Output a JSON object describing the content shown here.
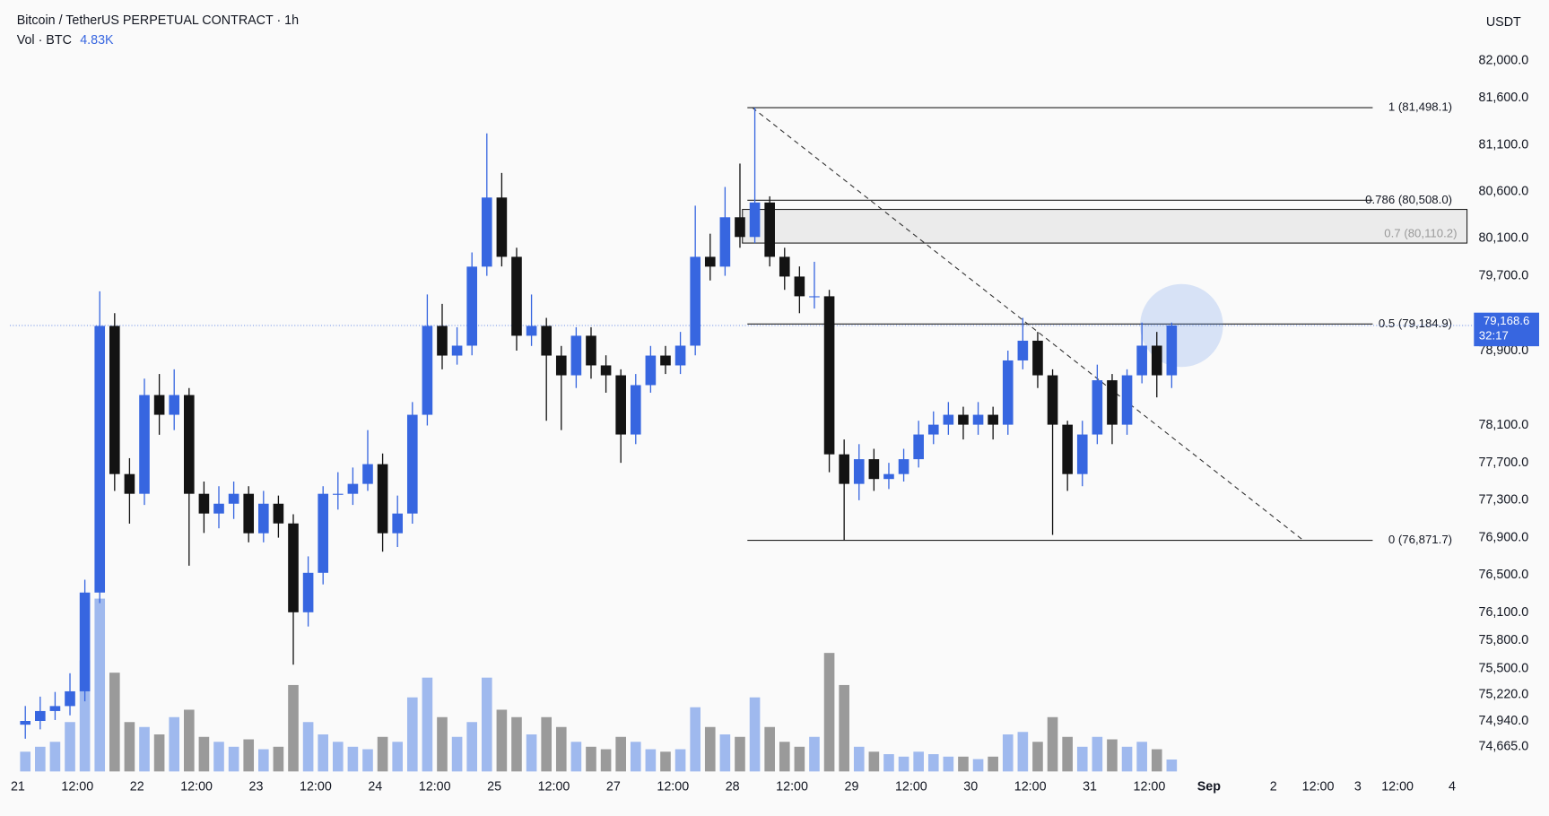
{
  "chart_data": {
    "type": "candlestick",
    "title": "Bitcoin / TetherUS PERPETUAL CONTRACT · 1h",
    "unit": "USDT",
    "volume_legend": {
      "name": "Vol · BTC",
      "value": 4830,
      "label": "4.83K"
    },
    "last_price": {
      "value": 79168.6,
      "label": "79,168.6"
    },
    "countdown": "32:17",
    "up_color": "#3766e0",
    "down_color": "#131313",
    "volume_up_color": "#9fb9ee",
    "volume_down_color": "#9a9a9a",
    "x": [
      0,
      3,
      6,
      9,
      12,
      15,
      18,
      21,
      24,
      27,
      30,
      33,
      36,
      39,
      42,
      45,
      48,
      51,
      54,
      57,
      60,
      63,
      66,
      69,
      72,
      75,
      78,
      81,
      84,
      87,
      90,
      93,
      96,
      99,
      102,
      105,
      108,
      111,
      114,
      117,
      120,
      123,
      126,
      129,
      132,
      135,
      138,
      141,
      144,
      147,
      150,
      153,
      156,
      159,
      162,
      165,
      168,
      171,
      174,
      177,
      180,
      183,
      186,
      189,
      192,
      195,
      198,
      201,
      204,
      207,
      210,
      213,
      216,
      219,
      222,
      225,
      228,
      231
    ],
    "open": [
      74900,
      74940,
      75046,
      75099,
      75257,
      76313,
      79164,
      77580,
      77369,
      78425,
      78214,
      78425,
      77369,
      77158,
      77263,
      77369,
      76947,
      77263,
      77052,
      76102,
      76524,
      77369,
      77369,
      77475,
      77686,
      76947,
      77158,
      78214,
      79164,
      78847,
      78953,
      79798,
      80537,
      79903,
      79059,
      79164,
      78847,
      78636,
      79059,
      78742,
      78636,
      78003,
      78531,
      78847,
      78742,
      78953,
      79903,
      79798,
      80326,
      80115,
      80484,
      79903,
      79692,
      79481,
      79481,
      77791,
      77475,
      77739,
      77527,
      77580,
      77739,
      78003,
      78108,
      78214,
      78108,
      78214,
      78108,
      78795,
      79006,
      78636,
      78108,
      77580,
      78003,
      78583,
      78108,
      78636,
      78953,
      78636
    ],
    "high": [
      75100,
      75200,
      75250,
      75450,
      76450,
      79534,
      79300,
      77750,
      78600,
      78650,
      78700,
      78500,
      77500,
      77450,
      77500,
      77450,
      77400,
      77350,
      77150,
      76700,
      77450,
      77600,
      77650,
      78050,
      77800,
      77350,
      78350,
      79500,
      79400,
      79150,
      79950,
      81223,
      80800,
      80000,
      79500,
      79250,
      78950,
      79150,
      79150,
      78850,
      78700,
      78650,
      78950,
      78950,
      79100,
      80450,
      80150,
      80650,
      80900,
      81498.1,
      80550,
      80000,
      79800,
      79850,
      79550,
      77950,
      77900,
      77850,
      77700,
      77850,
      78150,
      78250,
      78350,
      78300,
      78350,
      78300,
      78900,
      79250,
      79100,
      78700,
      78150,
      78150,
      78750,
      78650,
      78700,
      79200,
      79100,
      79200
    ],
    "low": [
      74750,
      74850,
      74950,
      75000,
      75150,
      76200,
      77400,
      77050,
      77250,
      78000,
      78050,
      76600,
      76950,
      77000,
      77100,
      76850,
      76850,
      76900,
      75542,
      75950,
      76400,
      77200,
      77250,
      77400,
      76750,
      76800,
      77050,
      78100,
      78700,
      78750,
      78850,
      79700,
      79800,
      78900,
      78950,
      78150,
      78050,
      78500,
      78600,
      78450,
      77700,
      77900,
      78450,
      78650,
      78650,
      78850,
      79650,
      79700,
      80000,
      80050,
      79800,
      79550,
      79300,
      79350,
      77600,
      76871.7,
      77300,
      77400,
      77420,
      77500,
      77650,
      77900,
      78000,
      77950,
      78000,
      77950,
      78000,
      78700,
      78500,
      76930,
      77400,
      77450,
      77900,
      77900,
      78000,
      78550,
      78400,
      78500
    ],
    "close": [
      74940,
      75046,
      75099,
      75257,
      76313,
      79164,
      77580,
      77369,
      78425,
      78214,
      78425,
      77369,
      77158,
      77263,
      77369,
      76947,
      77263,
      77052,
      76102,
      76524,
      77369,
      77369,
      77475,
      77686,
      76947,
      77158,
      78214,
      79164,
      78847,
      78953,
      79798,
      80537,
      79903,
      79059,
      79164,
      78847,
      78636,
      79059,
      78742,
      78636,
      78003,
      78531,
      78847,
      78742,
      78953,
      79903,
      79798,
      80326,
      80115,
      80484,
      79903,
      79692,
      79481,
      79481,
      77791,
      77475,
      77739,
      77527,
      77580,
      77739,
      78003,
      78108,
      78214,
      78108,
      78214,
      78108,
      78795,
      79006,
      78636,
      78108,
      77580,
      78003,
      78583,
      78108,
      78636,
      78953,
      78636,
      79168.6
    ],
    "volume": [
      8000,
      10000,
      12000,
      20000,
      45000,
      70000,
      40000,
      20000,
      18000,
      15000,
      22000,
      25000,
      14000,
      12000,
      10000,
      13000,
      9000,
      10000,
      35000,
      20000,
      15000,
      12000,
      10000,
      9000,
      14000,
      12000,
      30000,
      38000,
      22000,
      14000,
      20000,
      38000,
      25000,
      22000,
      15000,
      22000,
      18000,
      12000,
      10000,
      9000,
      14000,
      12000,
      9000,
      8000,
      9000,
      26000,
      18000,
      15000,
      14000,
      30000,
      18000,
      12000,
      10000,
      14000,
      48000,
      35000,
      10000,
      8000,
      7000,
      6000,
      8000,
      7000,
      6000,
      6000,
      5000,
      6000,
      15000,
      16000,
      12000,
      22000,
      14000,
      10000,
      14000,
      13000,
      10000,
      12000,
      9000,
      4830
    ],
    "xlim": [
      -3.6,
      293
    ],
    "ylim": [
      74400,
      82120
    ],
    "vlim": [
      0,
      80000
    ],
    "xticks": [
      {
        "value": 0,
        "label": "21"
      },
      {
        "value": 12,
        "label": "12:00"
      },
      {
        "value": 24,
        "label": "22"
      },
      {
        "value": 36,
        "label": "12:00"
      },
      {
        "value": 48,
        "label": "23"
      },
      {
        "value": 60,
        "label": "12:00"
      },
      {
        "value": 72,
        "label": "24"
      },
      {
        "value": 84,
        "label": "12:00"
      },
      {
        "value": 96,
        "label": "25"
      },
      {
        "value": 108,
        "label": "12:00"
      },
      {
        "value": 120,
        "label": "27"
      },
      {
        "value": 132,
        "label": "12:00"
      },
      {
        "value": 144,
        "label": "28"
      },
      {
        "value": 156,
        "label": "12:00"
      },
      {
        "value": 168,
        "label": "29"
      },
      {
        "value": 180,
        "label": "12:00"
      },
      {
        "value": 192,
        "label": "30"
      },
      {
        "value": 204,
        "label": "12:00"
      },
      {
        "value": 216,
        "label": "31"
      },
      {
        "value": 228,
        "label": "12:00"
      },
      {
        "value": 240,
        "label": "Sep"
      },
      {
        "value": 253,
        "label": "2"
      },
      {
        "value": 262,
        "label": "12:00"
      },
      {
        "value": 270,
        "label": "3"
      },
      {
        "value": 278,
        "label": "12:00"
      },
      {
        "value": 289,
        "label": "4"
      }
    ],
    "yticks": [
      {
        "value": 82000,
        "label": "82,000.0"
      },
      {
        "value": 81600,
        "label": "81,600.0"
      },
      {
        "value": 81100,
        "label": "81,100.0"
      },
      {
        "value": 80600,
        "label": "80,600.0"
      },
      {
        "value": 80100,
        "label": "80,100.0"
      },
      {
        "value": 79700,
        "label": "79,700.0"
      },
      {
        "value": 78900,
        "label": "78,900.0"
      },
      {
        "value": 78100,
        "label": "78,100.0"
      },
      {
        "value": 77700,
        "label": "77,700.0"
      },
      {
        "value": 77300,
        "label": "77,300.0"
      },
      {
        "value": 76900,
        "label": "76,900.0"
      },
      {
        "value": 76500,
        "label": "76,500.0"
      },
      {
        "value": 76100,
        "label": "76,100.0"
      },
      {
        "value": 75800,
        "label": "75,800.0"
      },
      {
        "value": 75500,
        "label": "75,500.0"
      },
      {
        "value": 75220,
        "label": "75,220.0"
      },
      {
        "value": 74940,
        "label": "74,940.0"
      },
      {
        "value": 74665,
        "label": "74,665.0"
      }
    ],
    "fib": {
      "x": [
        147,
        273
      ],
      "levels": [
        {
          "value": 81498.1,
          "label": "1 (81,498.1)"
        },
        {
          "value": 80508.0,
          "label": "0.786 (80,508.0)"
        },
        {
          "value": 79184.9,
          "label": "0.5 (79,184.9)"
        },
        {
          "value": 76871.7,
          "label": "0 (76,871.7)"
        }
      ]
    },
    "zone": {
      "x": [
        146,
        292
      ],
      "range": [
        80050,
        80410
      ],
      "label": "0.7 (80,110.2)"
    },
    "trendline": {
      "x": [
        148,
        259
      ],
      "y": [
        81498.1,
        76871.7
      ]
    }
  }
}
